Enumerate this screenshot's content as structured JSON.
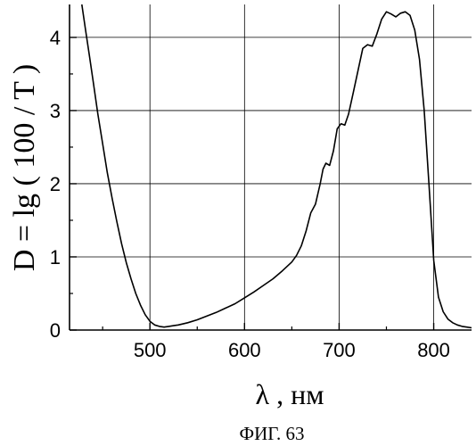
{
  "chart_data": {
    "type": "line",
    "title": "",
    "caption": "ФИГ. 63",
    "xlabel": "λ , нм",
    "ylabel": "D = lg ( 100 / T )",
    "xlim": [
      415,
      840
    ],
    "ylim": [
      0,
      4.45
    ],
    "grid": true,
    "legend": "none",
    "x_ticks": [
      500,
      600,
      700,
      800
    ],
    "y_ticks": [
      0,
      1,
      2,
      3,
      4
    ],
    "series": [
      {
        "x": [
          428,
          432,
          436,
          440,
          445,
          450,
          455,
          460,
          465,
          470,
          475,
          480,
          485,
          490,
          495,
          500,
          505,
          510,
          515,
          520,
          525,
          530,
          540,
          550,
          560,
          570,
          580,
          590,
          600,
          610,
          620,
          630,
          640,
          650,
          655,
          660,
          665,
          670,
          675,
          680,
          683,
          686,
          690,
          694,
          698,
          702,
          706,
          710,
          715,
          720,
          725,
          730,
          735,
          740,
          745,
          750,
          755,
          760,
          765,
          770,
          775,
          780,
          785,
          790,
          795,
          800,
          805,
          810,
          815,
          820,
          825,
          830,
          835,
          840
        ],
        "y": [
          4.45,
          4.1,
          3.75,
          3.4,
          2.95,
          2.55,
          2.15,
          1.8,
          1.48,
          1.18,
          0.92,
          0.7,
          0.5,
          0.34,
          0.21,
          0.12,
          0.07,
          0.05,
          0.04,
          0.05,
          0.06,
          0.07,
          0.1,
          0.14,
          0.19,
          0.24,
          0.3,
          0.36,
          0.44,
          0.52,
          0.61,
          0.7,
          0.81,
          0.93,
          1.02,
          1.15,
          1.35,
          1.6,
          1.72,
          2.0,
          2.2,
          2.28,
          2.25,
          2.45,
          2.75,
          2.82,
          2.8,
          2.95,
          3.25,
          3.55,
          3.85,
          3.9,
          3.88,
          4.05,
          4.25,
          4.35,
          4.32,
          4.28,
          4.33,
          4.35,
          4.3,
          4.1,
          3.7,
          3.0,
          2.0,
          0.95,
          0.45,
          0.25,
          0.15,
          0.1,
          0.07,
          0.05,
          0.04,
          0.03
        ]
      }
    ]
  }
}
